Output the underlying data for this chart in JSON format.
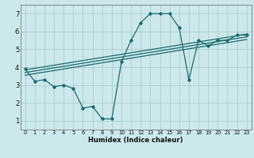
{
  "title": "",
  "xlabel": "Humidex (Indice chaleur)",
  "bg_color": "#cce8ec",
  "grid_color": "#aacccc",
  "line_color": "#1a6b6b",
  "xlim": [
    -0.5,
    23.5
  ],
  "ylim": [
    0.5,
    7.5
  ],
  "xticks": [
    0,
    1,
    2,
    3,
    4,
    5,
    6,
    7,
    8,
    9,
    10,
    11,
    12,
    13,
    14,
    15,
    16,
    17,
    18,
    19,
    20,
    21,
    22,
    23
  ],
  "yticks": [
    1,
    2,
    3,
    4,
    5,
    6,
    7
  ],
  "line1_x": [
    0,
    1,
    2,
    3,
    4,
    5,
    6,
    7,
    8,
    9,
    10,
    11,
    12,
    13,
    14,
    15,
    16,
    17,
    18,
    19,
    20,
    21,
    22,
    23
  ],
  "line1_y": [
    3.9,
    3.2,
    3.3,
    2.9,
    3.0,
    2.8,
    1.7,
    1.8,
    1.1,
    1.1,
    4.3,
    5.5,
    6.5,
    7.0,
    7.0,
    7.0,
    6.2,
    3.3,
    5.5,
    5.2,
    5.5,
    5.5,
    5.8,
    5.8
  ],
  "line2_x": [
    0,
    23
  ],
  "line2_y": [
    3.85,
    5.85
  ],
  "line3_x": [
    0,
    23
  ],
  "line3_y": [
    3.7,
    5.7
  ],
  "line4_x": [
    0,
    23
  ],
  "line4_y": [
    3.55,
    5.55
  ],
  "xlabel_fontsize": 6.0,
  "tick_fontsize_x": 4.8,
  "tick_fontsize_y": 6.0
}
